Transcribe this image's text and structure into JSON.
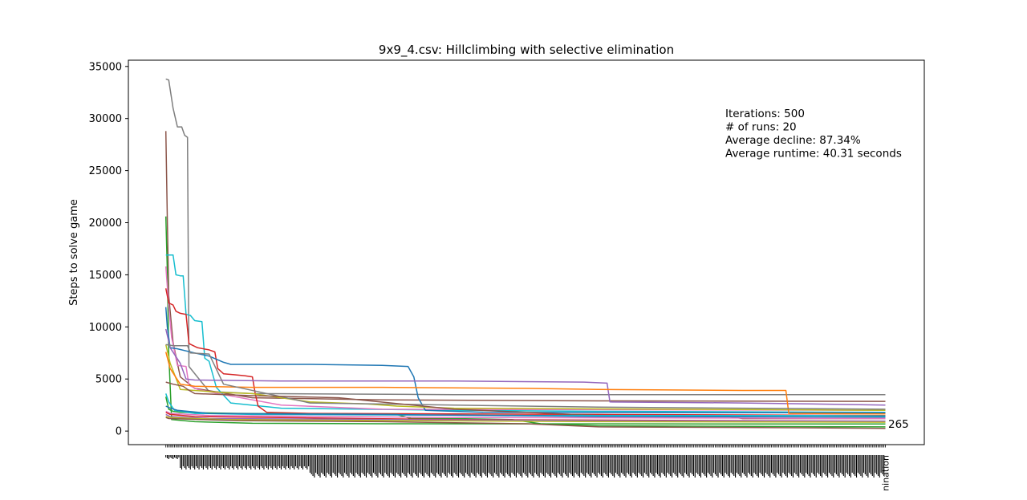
{
  "chart_data": {
    "type": "line",
    "title": "9x9_4.csv: Hillclimbing with selective elimination",
    "xlabel": "",
    "ylabel": "Steps to solve game",
    "ylim": [
      -1300,
      35600
    ],
    "xlim": [
      -26,
      526
    ],
    "yticks": [
      0,
      5000,
      10000,
      15000,
      20000,
      25000,
      30000,
      35000
    ],
    "ytick_labels": [
      "0",
      "5000",
      "10000",
      "15000",
      "20000",
      "25000",
      "30000",
      "35000"
    ],
    "grid": false,
    "legend": "none",
    "x_range": [
      0,
      499
    ],
    "last_x_tick_label": "nination",
    "annotation_lines": [
      "Iterations: 500",
      "# of runs: 20",
      "Average decline: 87.34%",
      "Average runtime: 40.31 seconds"
    ],
    "end_label": "265",
    "end_label_value": 265,
    "series": [
      {
        "color": "#7f7f7f",
        "points": [
          [
            0,
            33800
          ],
          [
            2,
            33700
          ],
          [
            5,
            31000
          ],
          [
            8,
            29200
          ],
          [
            11,
            29200
          ],
          [
            13,
            28400
          ],
          [
            15,
            28200
          ],
          [
            16,
            6200
          ],
          [
            30,
            3800
          ],
          [
            60,
            3600
          ],
          [
            200,
            3500
          ],
          [
            499,
            3500
          ]
        ]
      },
      {
        "color": "#8c564b",
        "points": [
          [
            0,
            28800
          ],
          [
            1,
            20500
          ],
          [
            2,
            13000
          ],
          [
            5,
            8500
          ],
          [
            10,
            5200
          ],
          [
            20,
            4100
          ],
          [
            60,
            3200
          ],
          [
            150,
            3000
          ],
          [
            300,
            2900
          ],
          [
            499,
            2850
          ]
        ]
      },
      {
        "color": "#2ca02c",
        "points": [
          [
            0,
            20600
          ],
          [
            1,
            15500
          ],
          [
            2,
            7500
          ],
          [
            4,
            1100
          ],
          [
            20,
            900
          ],
          [
            60,
            750
          ],
          [
            150,
            700
          ],
          [
            499,
            680
          ]
        ]
      },
      {
        "color": "#17becf",
        "points": [
          [
            0,
            16900
          ],
          [
            5,
            16900
          ],
          [
            7,
            15000
          ],
          [
            10,
            14900
          ],
          [
            12,
            14900
          ],
          [
            14,
            11200
          ],
          [
            17,
            11100
          ],
          [
            20,
            10600
          ],
          [
            25,
            10500
          ],
          [
            27,
            7000
          ],
          [
            30,
            6700
          ],
          [
            35,
            4200
          ],
          [
            45,
            2700
          ],
          [
            80,
            2200
          ],
          [
            200,
            2000
          ],
          [
            300,
            1900
          ],
          [
            499,
            1800
          ]
        ]
      },
      {
        "color": "#e377c2",
        "points": [
          [
            0,
            15800
          ],
          [
            2,
            12000
          ],
          [
            4,
            9000
          ],
          [
            8,
            6300
          ],
          [
            14,
            6200
          ],
          [
            16,
            4400
          ],
          [
            22,
            4000
          ],
          [
            40,
            3500
          ],
          [
            80,
            2500
          ],
          [
            150,
            2100
          ],
          [
            499,
            2000
          ]
        ]
      },
      {
        "color": "#d62728",
        "points": [
          [
            0,
            13700
          ],
          [
            2,
            12300
          ],
          [
            5,
            12100
          ],
          [
            7,
            11500
          ],
          [
            10,
            11300
          ],
          [
            14,
            11200
          ],
          [
            16,
            8400
          ],
          [
            22,
            8000
          ],
          [
            30,
            7800
          ],
          [
            34,
            7600
          ],
          [
            36,
            6000
          ],
          [
            40,
            5500
          ],
          [
            48,
            5400
          ],
          [
            55,
            5300
          ],
          [
            60,
            5200
          ],
          [
            62,
            3600
          ],
          [
            64,
            2400
          ],
          [
            70,
            1800
          ],
          [
            100,
            1700
          ],
          [
            300,
            1600
          ],
          [
            499,
            1500
          ]
        ]
      },
      {
        "color": "#1f77b4",
        "points": [
          [
            0,
            11900
          ],
          [
            1,
            10000
          ],
          [
            3,
            8000
          ],
          [
            8,
            7900
          ],
          [
            20,
            7500
          ],
          [
            30,
            7200
          ],
          [
            40,
            6600
          ],
          [
            45,
            6400
          ],
          [
            100,
            6400
          ],
          [
            150,
            6300
          ],
          [
            168,
            6200
          ],
          [
            172,
            5200
          ],
          [
            175,
            3200
          ],
          [
            180,
            2000
          ],
          [
            220,
            1800
          ],
          [
            499,
            1750
          ]
        ]
      },
      {
        "color": "#9467bd",
        "points": [
          [
            0,
            9800
          ],
          [
            3,
            8000
          ],
          [
            10,
            6500
          ],
          [
            14,
            5000
          ],
          [
            20,
            4900
          ],
          [
            80,
            4800
          ],
          [
            200,
            4800
          ],
          [
            290,
            4700
          ],
          [
            306,
            4600
          ],
          [
            308,
            2800
          ],
          [
            400,
            2700
          ],
          [
            499,
            2500
          ]
        ]
      },
      {
        "color": "#bcbd22",
        "points": [
          [
            0,
            8300
          ],
          [
            3,
            6500
          ],
          [
            10,
            4000
          ],
          [
            40,
            3700
          ],
          [
            60,
            3600
          ],
          [
            80,
            3200
          ],
          [
            100,
            2800
          ],
          [
            140,
            2600
          ],
          [
            160,
            2400
          ],
          [
            200,
            2200
          ],
          [
            499,
            2000
          ]
        ]
      },
      {
        "color": "#ff7f0e",
        "points": [
          [
            0,
            7600
          ],
          [
            3,
            6000
          ],
          [
            10,
            4500
          ],
          [
            20,
            4300
          ],
          [
            60,
            4200
          ],
          [
            150,
            4200
          ],
          [
            250,
            4100
          ],
          [
            300,
            4000
          ],
          [
            400,
            3900
          ],
          [
            430,
            3900
          ],
          [
            432,
            1700
          ],
          [
            499,
            1650
          ]
        ]
      },
      {
        "color": "#7f7f7f",
        "points": [
          [
            0,
            8300
          ],
          [
            5,
            8200
          ],
          [
            15,
            8200
          ],
          [
            17,
            7500
          ],
          [
            30,
            7400
          ],
          [
            40,
            4500
          ],
          [
            100,
            2700
          ],
          [
            200,
            2500
          ],
          [
            300,
            2300
          ],
          [
            400,
            2200
          ],
          [
            499,
            2100
          ]
        ]
      },
      {
        "color": "#8c564b",
        "points": [
          [
            0,
            4700
          ],
          [
            5,
            4500
          ],
          [
            12,
            4300
          ],
          [
            15,
            4000
          ],
          [
            20,
            3600
          ],
          [
            60,
            3400
          ],
          [
            120,
            3200
          ],
          [
            200,
            2100
          ],
          [
            250,
            1800
          ],
          [
            300,
            1500
          ],
          [
            390,
            1400
          ],
          [
            400,
            1200
          ],
          [
            450,
            1200
          ],
          [
            499,
            1200
          ]
        ]
      },
      {
        "color": "#2ca02c",
        "points": [
          [
            0,
            3300
          ],
          [
            2,
            2100
          ],
          [
            5,
            1900
          ],
          [
            10,
            1800
          ],
          [
            50,
            1700
          ],
          [
            150,
            1600
          ],
          [
            160,
            1600
          ],
          [
            170,
            1200
          ],
          [
            200,
            1200
          ],
          [
            240,
            1100
          ],
          [
            260,
            700
          ],
          [
            300,
            500
          ],
          [
            400,
            450
          ],
          [
            499,
            400
          ]
        ]
      },
      {
        "color": "#17becf",
        "points": [
          [
            0,
            3600
          ],
          [
            2,
            2800
          ],
          [
            6,
            2000
          ],
          [
            20,
            1700
          ],
          [
            60,
            1600
          ],
          [
            250,
            1500
          ],
          [
            450,
            1500
          ],
          [
            499,
            1450
          ]
        ]
      },
      {
        "color": "#1f77b4",
        "points": [
          [
            0,
            2400
          ],
          [
            3,
            2200
          ],
          [
            8,
            2000
          ],
          [
            30,
            1700
          ],
          [
            150,
            1600
          ],
          [
            300,
            1400
          ],
          [
            499,
            1350
          ]
        ]
      },
      {
        "color": "#e377c2",
        "points": [
          [
            0,
            1900
          ],
          [
            3,
            1700
          ],
          [
            30,
            1500
          ],
          [
            200,
            1300
          ],
          [
            400,
            1250
          ],
          [
            499,
            1200
          ]
        ]
      },
      {
        "color": "#d62728",
        "points": [
          [
            0,
            1800
          ],
          [
            3,
            1600
          ],
          [
            20,
            1400
          ],
          [
            200,
            1100
          ],
          [
            400,
            1000
          ],
          [
            499,
            950
          ]
        ]
      },
      {
        "color": "#9467bd",
        "points": [
          [
            0,
            1600
          ],
          [
            3,
            1400
          ],
          [
            30,
            1200
          ],
          [
            300,
            1000
          ],
          [
            499,
            950
          ]
        ]
      },
      {
        "color": "#bcbd22",
        "points": [
          [
            0,
            1400
          ],
          [
            3,
            1300
          ],
          [
            40,
            1100
          ],
          [
            300,
            900
          ],
          [
            499,
            850
          ]
        ]
      },
      {
        "color": "#8c564b",
        "points": [
          [
            0,
            1300
          ],
          [
            2,
            1200
          ],
          [
            50,
            1000
          ],
          [
            150,
            900
          ],
          [
            250,
            700
          ],
          [
            300,
            400
          ],
          [
            400,
            350
          ],
          [
            499,
            265
          ]
        ]
      }
    ]
  }
}
